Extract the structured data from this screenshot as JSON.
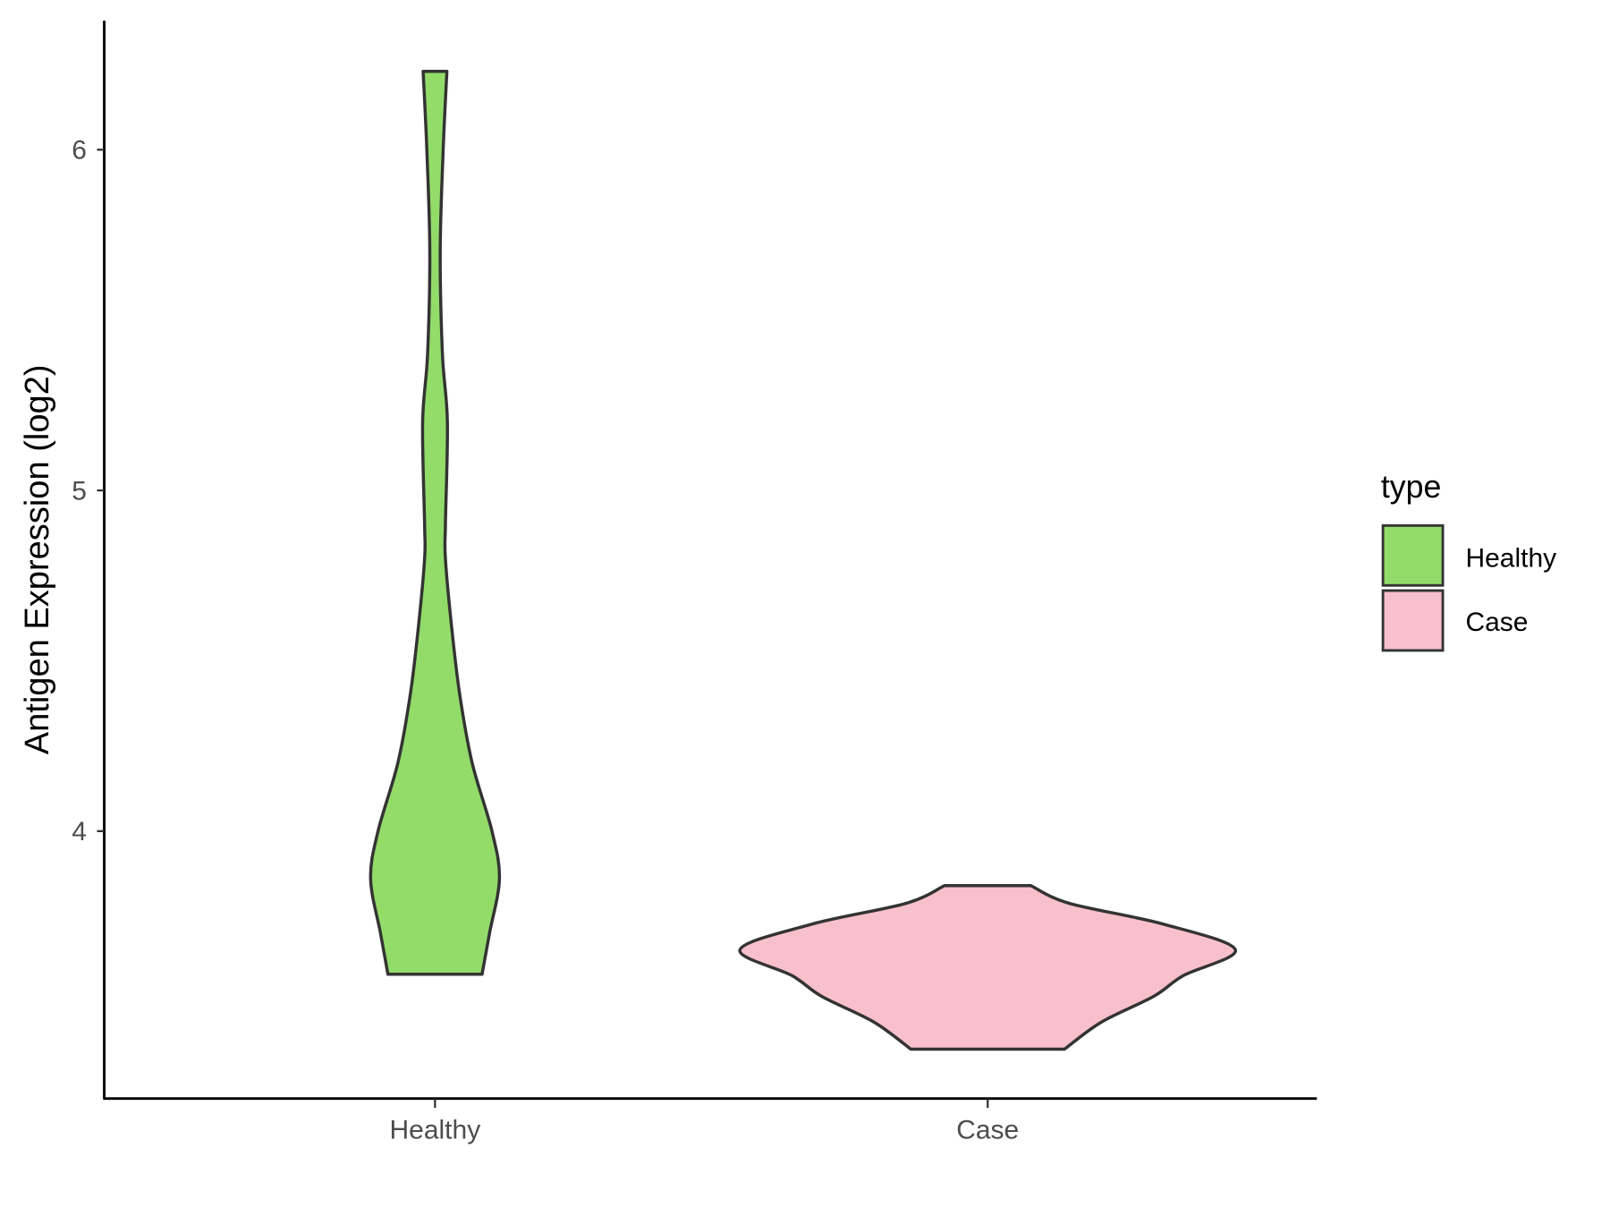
{
  "chart_data": {
    "type": "violin",
    "title": "",
    "xlabel": "",
    "ylabel": "Antigen Expression (log2)",
    "categories": [
      "Healthy",
      "Case"
    ],
    "yticks": [
      4,
      5,
      6
    ],
    "ylim": [
      3.22,
      6.37
    ],
    "grid": false,
    "legend": {
      "title": "type",
      "position": "right",
      "entries": [
        "Healthy",
        "Case"
      ]
    },
    "colors": {
      "Healthy": "#93DC6A",
      "Case": "#F8C0CB",
      "outline": "#333333"
    },
    "series": [
      {
        "name": "Healthy",
        "min": 3.58,
        "max": 6.23,
        "density_profile": [
          [
            3.58,
            0.19
          ],
          [
            3.7,
            0.22
          ],
          [
            3.86,
            0.26
          ],
          [
            4.0,
            0.23
          ],
          [
            4.2,
            0.15
          ],
          [
            4.4,
            0.1
          ],
          [
            4.6,
            0.067
          ],
          [
            4.8,
            0.042
          ],
          [
            4.9,
            0.042
          ],
          [
            5.2,
            0.05
          ],
          [
            5.4,
            0.03
          ],
          [
            5.7,
            0.021
          ],
          [
            6.0,
            0.033
          ],
          [
            6.23,
            0.048
          ]
        ]
      },
      {
        "name": "Case",
        "min": 3.36,
        "max": 3.84,
        "density_profile": [
          [
            3.36,
            0.31
          ],
          [
            3.44,
            0.46
          ],
          [
            3.515,
            0.67
          ],
          [
            3.576,
            0.79
          ],
          [
            3.652,
            1.0
          ],
          [
            3.727,
            0.71
          ],
          [
            3.788,
            0.33
          ],
          [
            3.84,
            0.175
          ]
        ]
      }
    ]
  }
}
